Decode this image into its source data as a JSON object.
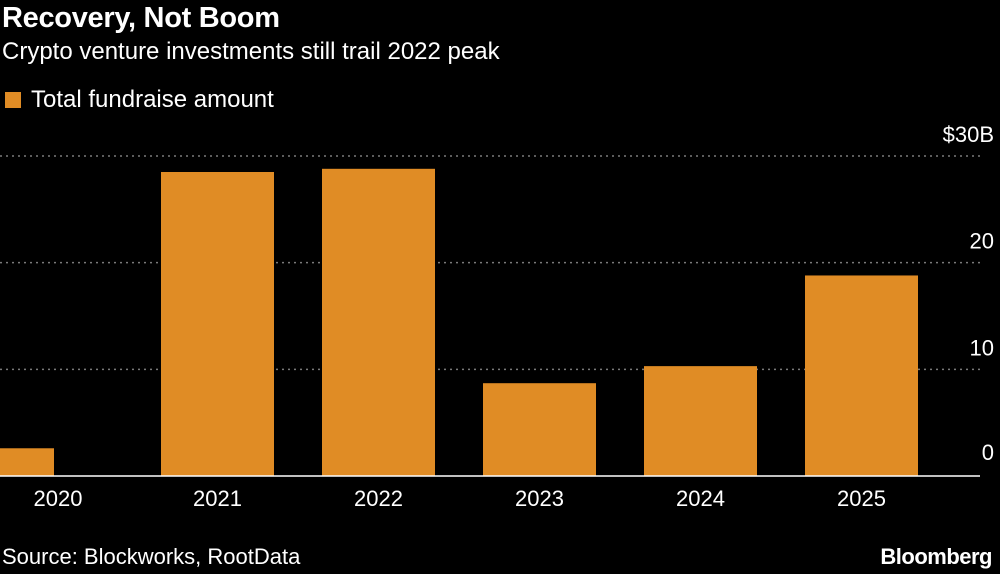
{
  "title": "Recovery, Not Boom",
  "subtitle": "Crypto venture investments still trail 2022 peak",
  "legend": {
    "label": "Total fundraise amount",
    "color": "#e08c25"
  },
  "source": "Source: Blockworks, RootData",
  "brand": "Bloomberg",
  "chart_data": {
    "type": "bar",
    "title": "Recovery, Not Boom",
    "subtitle": "Crypto venture investments still trail 2022 peak",
    "xlabel": "",
    "ylabel": "",
    "categories": [
      "2020",
      "2021",
      "2022",
      "2023",
      "2024",
      "2025"
    ],
    "series": [
      {
        "name": "Total fundraise amount",
        "values": [
          2.6,
          28.5,
          28.8,
          8.7,
          10.3,
          18.8
        ]
      }
    ],
    "ylim": [
      0,
      30
    ],
    "yticks": [
      0,
      10,
      20,
      30
    ],
    "ytick_labels": [
      "0",
      "10",
      "20",
      "$30B"
    ],
    "grid": true,
    "legend_position": "top-left",
    "colors": {
      "bar": "#e08c25",
      "grid": "#7a7a7a",
      "axis": "#ffffff"
    }
  }
}
